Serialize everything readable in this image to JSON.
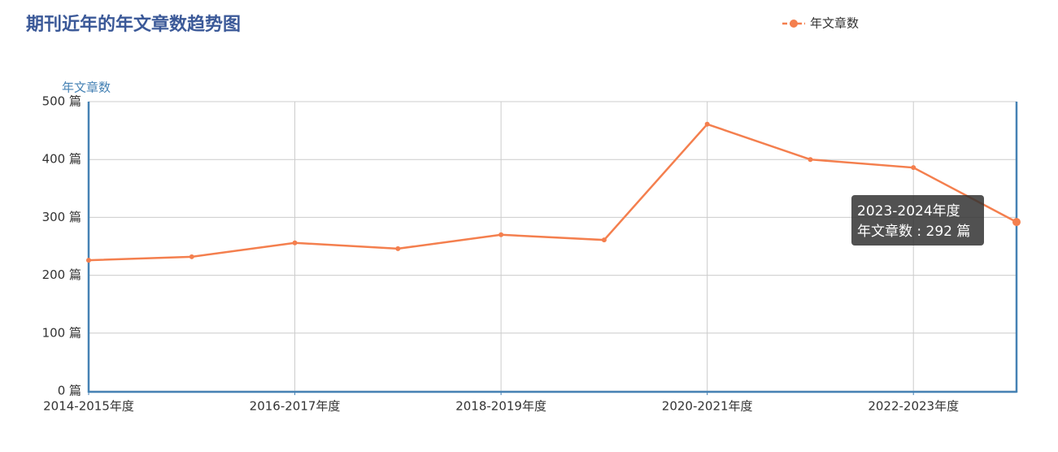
{
  "chart_data": {
    "type": "line",
    "title": "期刊近年的年文章数趋势图",
    "y_label": "年文章数",
    "categories": [
      "2014-2015年度",
      null,
      "2016-2017年度",
      null,
      "2018-2019年度",
      null,
      "2020-2021年度",
      null,
      "2022-2023年度",
      null
    ],
    "series": [
      {
        "name": "年文章数",
        "color": "#f47f4e",
        "values": [
          226,
          232,
          256,
          246,
          270,
          261,
          461,
          400,
          386,
          292
        ]
      }
    ],
    "ylim": [
      0,
      500
    ],
    "yticks": [
      {
        "value": 0,
        "label": "0 篇"
      },
      {
        "value": 100,
        "label": "100 篇"
      },
      {
        "value": 200,
        "label": "200 篇"
      },
      {
        "value": 300,
        "label": "300 篇"
      },
      {
        "value": 400,
        "label": "400 篇"
      },
      {
        "value": 500,
        "label": "500 篇"
      }
    ],
    "grid": true,
    "legend": "top-right",
    "tooltip": {
      "title": "2023-2024年度",
      "text": "年文章数 : 292 篇"
    }
  }
}
